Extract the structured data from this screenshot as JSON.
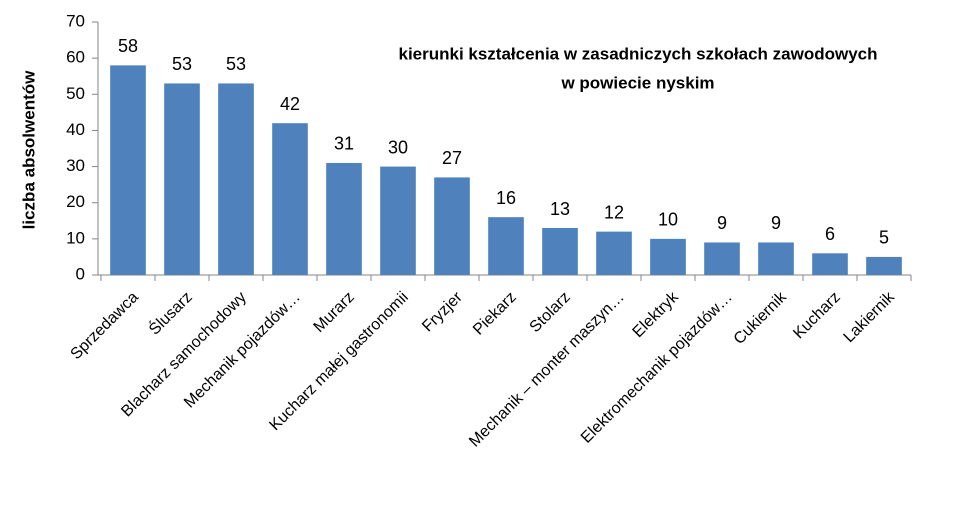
{
  "chart_data": {
    "type": "bar",
    "title": [
      "kierunki kształcenia w zasadniczych szkołach zawodowych",
      "w powiecie nyskim"
    ],
    "y_label": "liczba absolwentów",
    "categories": [
      "Sprzedawca",
      "Ślusarz",
      "Blacharz samochodowy",
      "Mechanik pojazdów…",
      "Murarz",
      "Kucharz małej gastronomii",
      "Fryzjer",
      "Piekarz",
      "Stolarz",
      "Mechanik – monter maszyn…",
      "Elektryk",
      "Elektromechanik pojazdów…",
      "Cukiernik",
      "Kucharz",
      "Lakiernik"
    ],
    "values": [
      58,
      53,
      53,
      42,
      31,
      30,
      27,
      16,
      13,
      12,
      10,
      9,
      9,
      6,
      5
    ],
    "color": "#4f81bd",
    "ylim": [
      0,
      70
    ],
    "yticks": [
      0,
      10,
      20,
      30,
      40,
      50,
      60,
      70
    ],
    "grid": false
  }
}
